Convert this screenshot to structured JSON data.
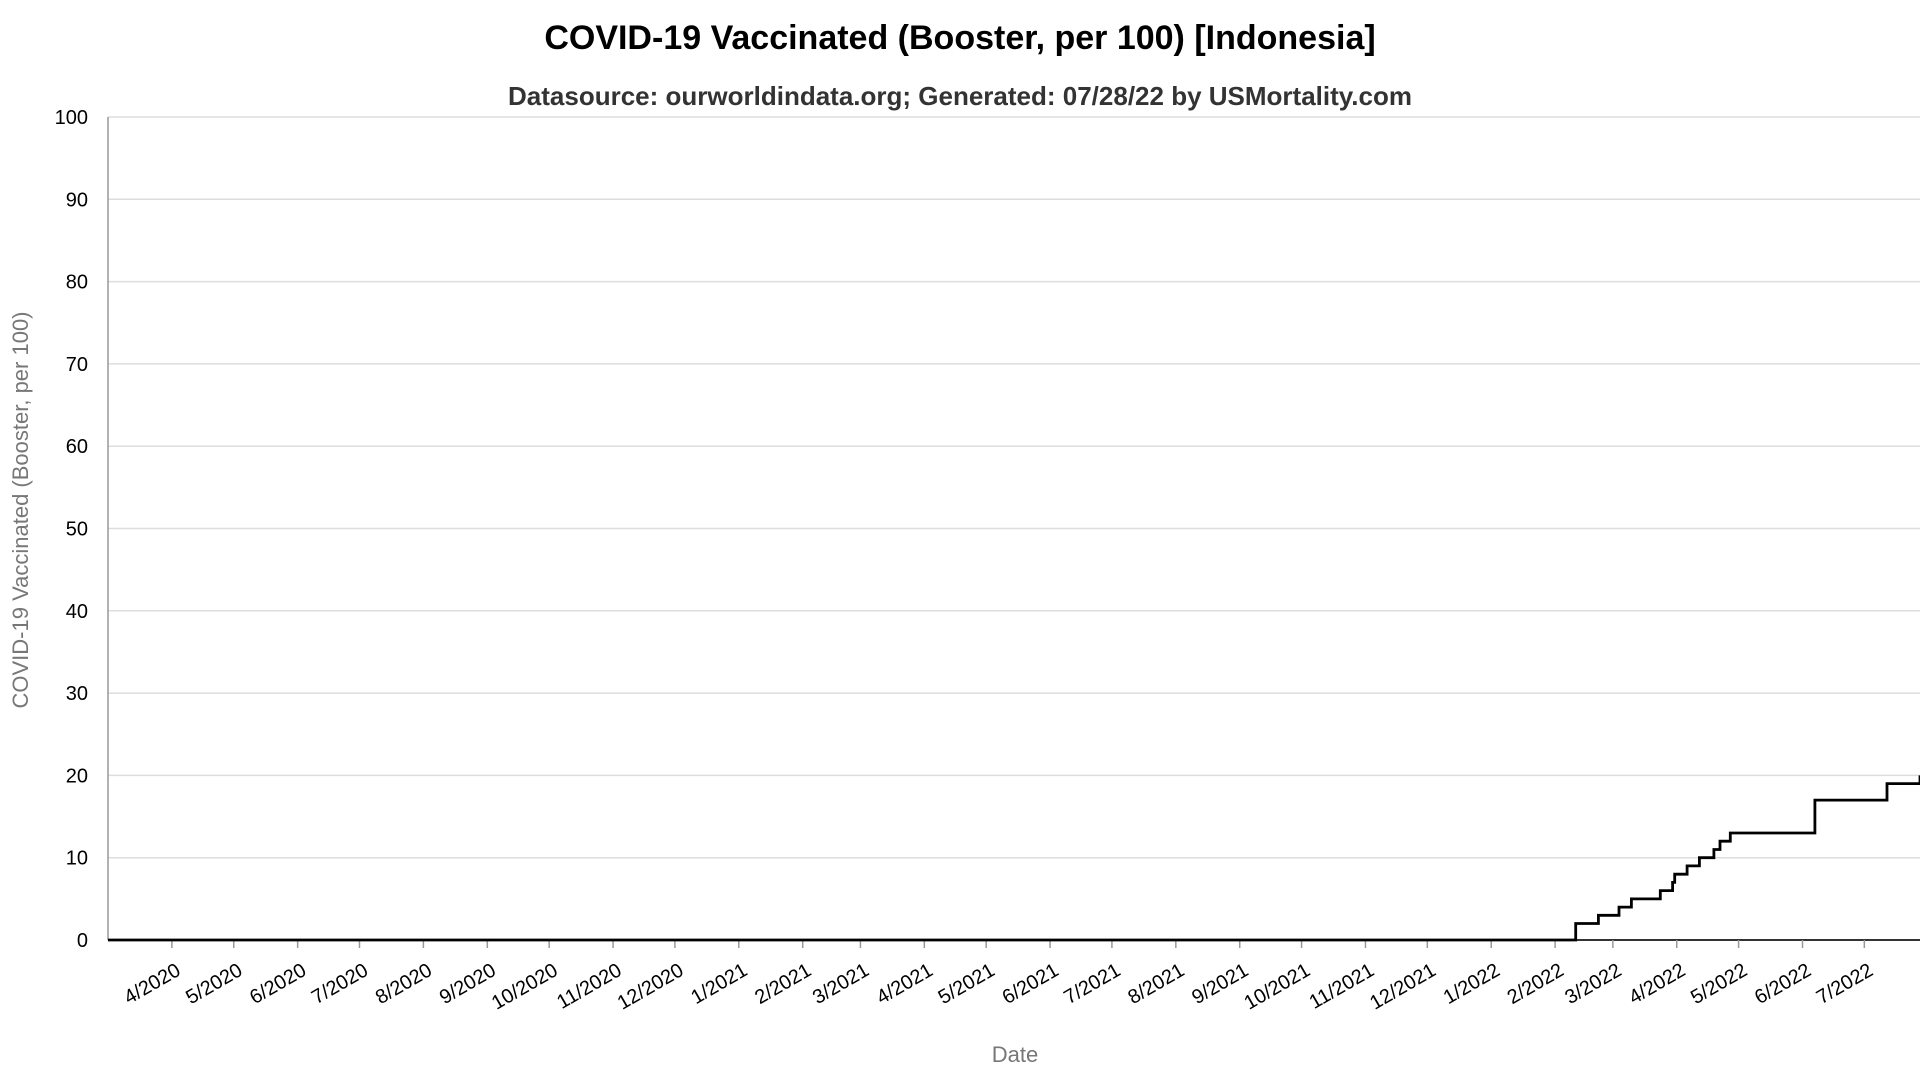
{
  "chart_data": {
    "type": "line",
    "title": "COVID-19 Vaccinated (Booster, per 100) [Indonesia]",
    "subtitle": "Datasource: ourworldindata.org; Generated: 07/28/22 by USMortality.com",
    "xlabel": "Date",
    "ylabel": "COVID-19 Vaccinated (Booster, per 100)",
    "ylim": [
      0,
      100
    ],
    "yticks": [
      0,
      10,
      20,
      30,
      40,
      50,
      60,
      70,
      80,
      90,
      100
    ],
    "xlim": [
      "2020-03-01",
      "2022-07-28"
    ],
    "xticks": [
      {
        "label": "4/2020",
        "date": "2020-04-01"
      },
      {
        "label": "5/2020",
        "date": "2020-05-01"
      },
      {
        "label": "6/2020",
        "date": "2020-06-01"
      },
      {
        "label": "7/2020",
        "date": "2020-07-01"
      },
      {
        "label": "8/2020",
        "date": "2020-08-01"
      },
      {
        "label": "9/2020",
        "date": "2020-09-01"
      },
      {
        "label": "10/2020",
        "date": "2020-10-01"
      },
      {
        "label": "11/2020",
        "date": "2020-11-01"
      },
      {
        "label": "12/2020",
        "date": "2020-12-01"
      },
      {
        "label": "1/2021",
        "date": "2021-01-01"
      },
      {
        "label": "2/2021",
        "date": "2021-02-01"
      },
      {
        "label": "3/2021",
        "date": "2021-03-01"
      },
      {
        "label": "4/2021",
        "date": "2021-04-01"
      },
      {
        "label": "5/2021",
        "date": "2021-05-01"
      },
      {
        "label": "6/2021",
        "date": "2021-06-01"
      },
      {
        "label": "7/2021",
        "date": "2021-07-01"
      },
      {
        "label": "8/2021",
        "date": "2021-08-01"
      },
      {
        "label": "9/2021",
        "date": "2021-09-01"
      },
      {
        "label": "10/2021",
        "date": "2021-10-01"
      },
      {
        "label": "11/2021",
        "date": "2021-11-01"
      },
      {
        "label": "12/2021",
        "date": "2021-12-01"
      },
      {
        "label": "1/2022",
        "date": "2022-01-01"
      },
      {
        "label": "2/2022",
        "date": "2022-02-01"
      },
      {
        "label": "3/2022",
        "date": "2022-03-01"
      },
      {
        "label": "4/2022",
        "date": "2022-04-01"
      },
      {
        "label": "5/2022",
        "date": "2022-05-01"
      },
      {
        "label": "6/2022",
        "date": "2022-06-01"
      },
      {
        "label": "7/2022",
        "date": "2022-07-01"
      }
    ],
    "grid": true,
    "line_color": "#000000",
    "series": [
      {
        "step": true,
        "points": [
          [
            "2020-03-01",
            0
          ],
          [
            "2022-02-10",
            0
          ],
          [
            "2022-02-11",
            2
          ],
          [
            "2022-02-22",
            3
          ],
          [
            "2022-03-04",
            4
          ],
          [
            "2022-03-10",
            5
          ],
          [
            "2022-03-24",
            6
          ],
          [
            "2022-03-30",
            7
          ],
          [
            "2022-03-31",
            8
          ],
          [
            "2022-04-06",
            9
          ],
          [
            "2022-04-12",
            10
          ],
          [
            "2022-04-19",
            11
          ],
          [
            "2022-04-22",
            12
          ],
          [
            "2022-04-27",
            13
          ],
          [
            "2022-06-07",
            17
          ],
          [
            "2022-07-12",
            19
          ],
          [
            "2022-07-28",
            20
          ]
        ]
      }
    ]
  }
}
